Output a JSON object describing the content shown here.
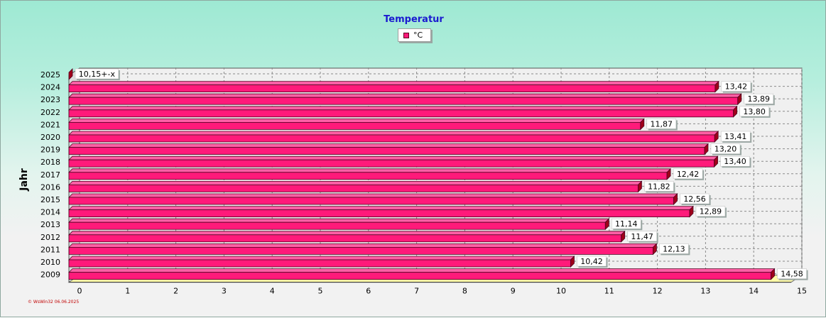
{
  "chart_data": {
    "type": "bar",
    "orientation": "horizontal",
    "title": "Temperatur",
    "ylabel": "Jahr",
    "xlabel": "",
    "categories": [
      "2025",
      "2024",
      "2023",
      "2022",
      "2021",
      "2020",
      "2019",
      "2018",
      "2017",
      "2016",
      "2015",
      "2014",
      "2013",
      "2012",
      "2011",
      "2010",
      "2009"
    ],
    "series": [
      {
        "name": "°C",
        "color": "#ff1a7a",
        "values": [
          null,
          13.42,
          13.89,
          13.8,
          11.87,
          13.41,
          13.2,
          13.4,
          12.42,
          11.82,
          12.56,
          12.89,
          11.14,
          11.47,
          12.13,
          10.42,
          14.58
        ],
        "labels": [
          "10,15+-x",
          "13,42",
          "13,89",
          "13,80",
          "11,87",
          "13,41",
          "13,20",
          "13,40",
          "12,42",
          "11,82",
          "12,56",
          "12,89",
          "11,14",
          "11,47",
          "12,13",
          "10,42",
          "14,58"
        ]
      }
    ],
    "xlim": [
      0,
      15
    ],
    "xticks": [
      0,
      1,
      2,
      3,
      4,
      5,
      6,
      7,
      8,
      9,
      10,
      11,
      12,
      13,
      14,
      15
    ],
    "grid": true,
    "legend_position": "top-center",
    "footer_note": "© WsWin32 06.06.2025"
  }
}
